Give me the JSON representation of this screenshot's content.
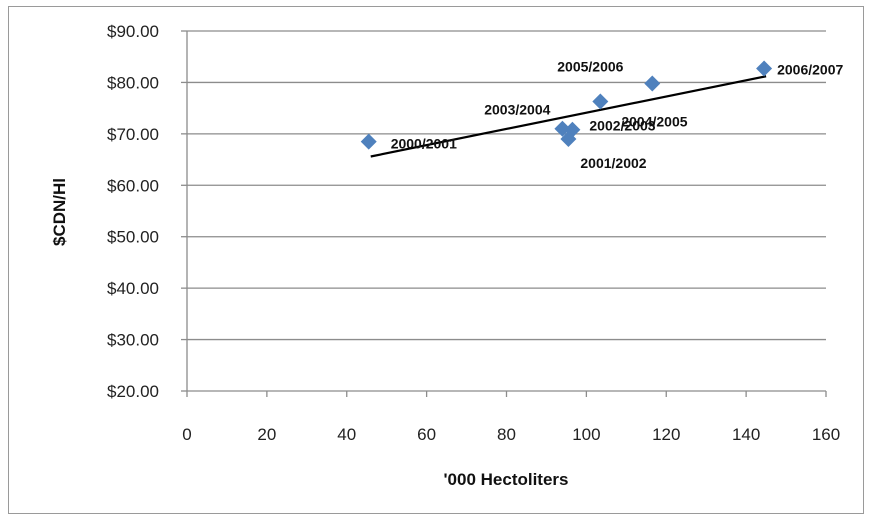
{
  "chart_data": {
    "type": "scatter",
    "title": "",
    "xlabel": "'000 Hectoliters",
    "ylabel": "$CDN/Hl",
    "xlim": [
      0,
      160
    ],
    "ylim": [
      20,
      90
    ],
    "x_ticks": [
      0,
      20,
      40,
      60,
      80,
      100,
      120,
      140,
      160
    ],
    "y_ticks": [
      20,
      30,
      40,
      50,
      60,
      70,
      80,
      90
    ],
    "y_tick_labels": [
      "$20.00",
      "$30.00",
      "$40.00",
      "$50.00",
      "$60.00",
      "$70.00",
      "$80.00",
      "$90.00"
    ],
    "grid": "horizontal",
    "legend": "none",
    "marker": "diamond",
    "marker_color": "#4f81bd",
    "trendline_color": "#000000",
    "points": [
      {
        "label": "2000/2001",
        "x": 45.5,
        "y": 68.5
      },
      {
        "label": "2001/2002",
        "x": 95.5,
        "y": 69.0
      },
      {
        "label": "2002/2003",
        "x": 96.5,
        "y": 70.8
      },
      {
        "label": "2003/2004",
        "x": 94.0,
        "y": 71.0
      },
      {
        "label": "2004/2005",
        "x": 103.5,
        "y": 76.3
      },
      {
        "label": "2005/2006",
        "x": 116.5,
        "y": 79.8
      },
      {
        "label": "2006/2007",
        "x": 144.5,
        "y": 82.7
      }
    ],
    "trendline": {
      "x": [
        46,
        145
      ],
      "y": [
        65.6,
        81.2
      ]
    }
  }
}
